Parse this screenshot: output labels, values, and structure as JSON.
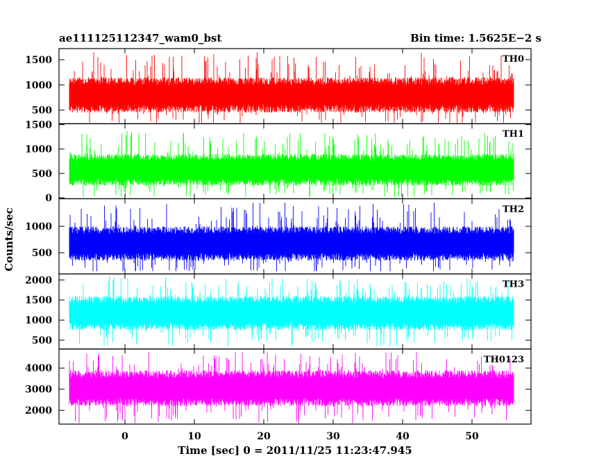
{
  "header": {
    "left": "ae111125112347_wam0_bst",
    "right": "Bin time: 1.5625E−2 s"
  },
  "chart_data": {
    "type": "line",
    "xlabel": "Time [sec] 0 = 2011/11/25 11:23:47.945",
    "ylabel": "Counts/sec",
    "xlim": [
      -9.5,
      58.5
    ],
    "x_range": [
      -8,
      56
    ],
    "x_ticks": [
      0,
      10,
      20,
      30,
      40,
      50
    ],
    "x_tick_labels": [
      "0",
      "10",
      "20",
      "30",
      "40",
      "50"
    ],
    "grid": false,
    "panels": [
      {
        "name": "TH0",
        "color": "#ff0000",
        "ylim": [
          230,
          1720
        ],
        "y_ticks": [
          500,
          1000,
          1500
        ],
        "y_tick_labels": [
          "500",
          "1000",
          "1500"
        ],
        "typical_range": [
          450,
          1150
        ],
        "min_value": 250,
        "max_value": 1700
      },
      {
        "name": "TH1",
        "color": "#00ff00",
        "ylim": [
          -20,
          1520
        ],
        "y_ticks": [
          0,
          500,
          1000,
          1500
        ],
        "y_tick_labels": [
          "0",
          "500",
          "1000",
          "1500"
        ],
        "typical_range": [
          250,
          900
        ],
        "min_value": 20,
        "max_value": 1450
      },
      {
        "name": "TH2",
        "color": "#0000ff",
        "ylim": [
          100,
          1520
        ],
        "y_ticks": [
          500,
          1000
        ],
        "y_tick_labels": [
          "500",
          "1000"
        ],
        "typical_range": [
          350,
          1000
        ],
        "min_value": 150,
        "max_value": 1500
      },
      {
        "name": "TH3",
        "color": "#00ffff",
        "ylim": [
          280,
          2150
        ],
        "y_ticks": [
          500,
          1000,
          1500,
          2000
        ],
        "y_tick_labels": [
          "500",
          "1000",
          "1500",
          "2000"
        ],
        "typical_range": [
          750,
          1600
        ],
        "min_value": 350,
        "max_value": 2100
      },
      {
        "name": "TH0123",
        "color": "#ff00ff",
        "ylim": [
          1350,
          4900
        ],
        "y_ticks": [
          2000,
          3000,
          4000
        ],
        "y_tick_labels": [
          "2000",
          "3000",
          "4000"
        ],
        "typical_range": [
          2200,
          3900
        ],
        "min_value": 1400,
        "max_value": 4750
      }
    ]
  }
}
